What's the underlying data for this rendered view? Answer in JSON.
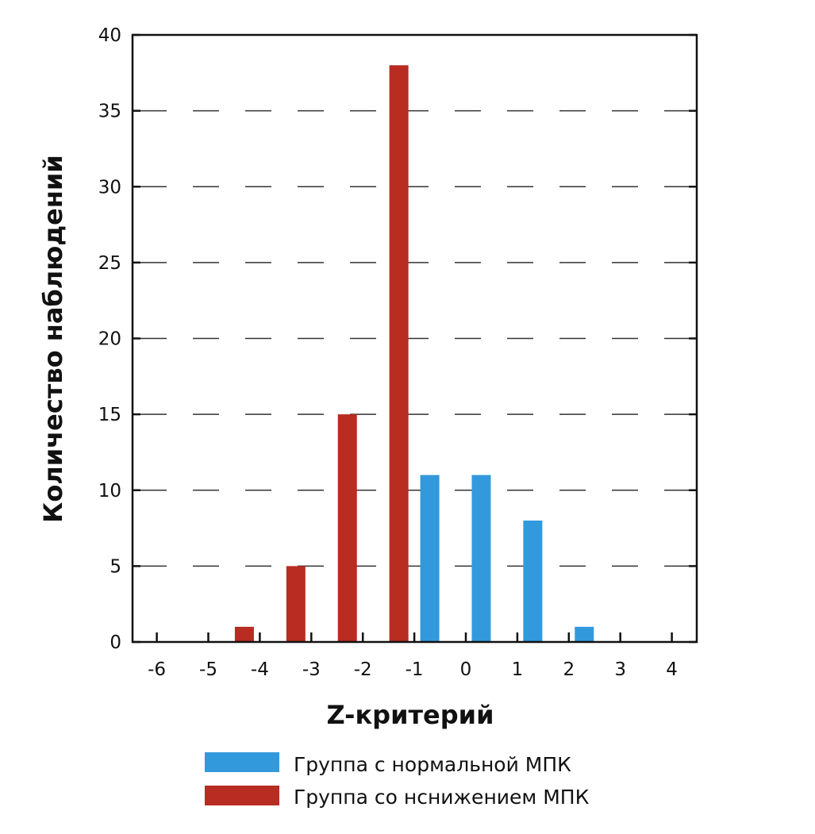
{
  "chart_data": {
    "type": "bar",
    "title": "",
    "xlabel": "Z-критерий",
    "ylabel": "Количество наблюдений",
    "xlim": [
      -6.45,
      4.5
    ],
    "ylim": [
      0,
      40
    ],
    "xticks": [
      -6,
      -5,
      -4,
      -3,
      -2,
      -1,
      0,
      1,
      2,
      3,
      4
    ],
    "yticks": [
      0,
      5,
      10,
      15,
      20,
      25,
      30,
      35,
      40
    ],
    "grid": "horizontal dashed",
    "legend_position": "bottom",
    "series": [
      {
        "name": "Группа с нормальной МПК",
        "color": "#3399dd",
        "x": [
          -0.7,
          0.3,
          1.3,
          2.3
        ],
        "values": [
          11,
          11,
          8,
          1
        ]
      },
      {
        "name": "Группа со нснижением МПК",
        "color": "#b82c22",
        "x": [
          -4.3,
          -3.3,
          -2.3,
          -1.3
        ],
        "values": [
          1,
          5,
          15,
          38
        ]
      }
    ]
  }
}
